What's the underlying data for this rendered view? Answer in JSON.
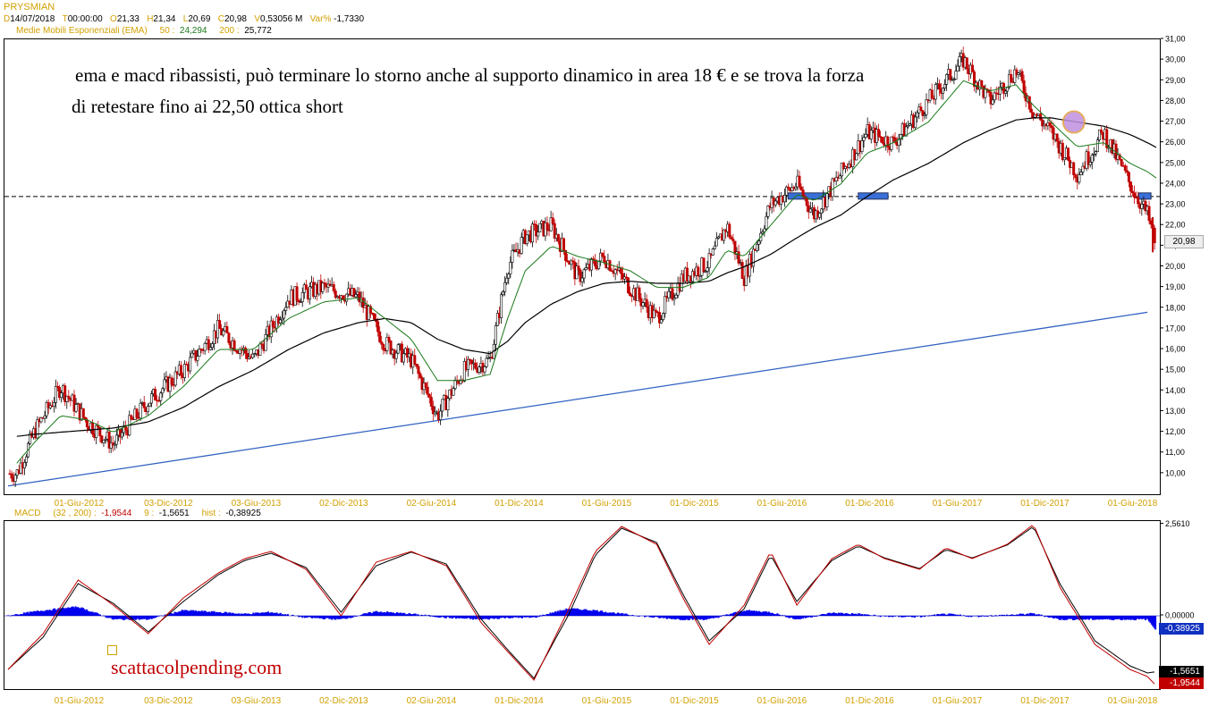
{
  "header": {
    "symbol": "PRYSMIAN",
    "d_label": "D",
    "date": "14/07/2018",
    "t_label": "T",
    "time": "00:00:00",
    "o_label": "O",
    "open": "21,33",
    "h_label": "H",
    "high": "21,34",
    "l_label": "L",
    "low": "20,69",
    "c_label": "C",
    "close": "20,98",
    "v_label": "V",
    "volume": "0,53056 M",
    "var_label": "Var%",
    "var_value": "-1,7330",
    "ema_label": "Medie Mobili Esponenziali (EMA)",
    "ema_fast_period": "50 :",
    "ema_fast_value": "24,294",
    "ema_slow_period": "200 :",
    "ema_slow_value": "25,772"
  },
  "annotation": {
    "line1": "ema e macd ribassisti, può terminare lo storno anche al supporto dinamico in area 18 € e se trova la forza",
    "line2": "di retestare fino ai 22,50 ottica short"
  },
  "macd_header": {
    "label": "MACD",
    "params": "(32 , 200) :",
    "macd_value": "-1,9544",
    "signal_label": "9 :",
    "signal_value": "-1,5651",
    "hist_label": "hist :",
    "hist_value": "-0,38925"
  },
  "watermark": "scattacolpending.com",
  "colors": {
    "accent_label": "#d2a000",
    "candle_down": "#c00000",
    "ema_fast": "#1a7a1a",
    "ema_slow": "#000000",
    "trendline": "#3060c0",
    "support_box": "#3a6fd8",
    "highlight_circle": "#c090e0",
    "macd_line": "#c00000",
    "histogram": "#0000ee"
  },
  "chart_data": [
    {
      "type": "line",
      "title": "PRYSMIAN",
      "xlabel": "",
      "ylabel": "",
      "ylim": [
        9,
        31
      ],
      "y_ticks": [
        "10,00",
        "11,00",
        "12,00",
        "13,00",
        "14,00",
        "15,00",
        "16,00",
        "17,00",
        "18,00",
        "19,00",
        "20,00",
        "21,00",
        "22,00",
        "23,00",
        "24,00",
        "25,00",
        "26,00",
        "27,00",
        "28,00",
        "29,00",
        "30,00",
        "31,00"
      ],
      "x_ticks": [
        "01-Giu-2012",
        "03-Dic-2012",
        "03-Giu-2013",
        "02-Dic-2013",
        "02-Giu-2014",
        "01-Dic-2014",
        "01-Giu-2015",
        "01-Dic-2015",
        "01-Giu-2016",
        "01-Dic-2016",
        "01-Giu-2017",
        "01-Dic-2017",
        "01-Giu-2018"
      ],
      "x": [
        2012.05,
        2012.15,
        2012.3,
        2012.45,
        2012.6,
        2012.8,
        2013.0,
        2013.2,
        2013.4,
        2013.6,
        2013.8,
        2014.0,
        2014.15,
        2014.3,
        2014.45,
        2014.6,
        2014.75,
        2014.85,
        2014.95,
        2015.1,
        2015.25,
        2015.4,
        2015.55,
        2015.7,
        2015.85,
        2016.0,
        2016.1,
        2016.2,
        2016.35,
        2016.5,
        2016.6,
        2016.75,
        2016.9,
        2017.05,
        2017.25,
        2017.45,
        2017.6,
        2017.75,
        2017.85,
        2017.95,
        2018.1,
        2018.25,
        2018.4,
        2018.5,
        2018.55
      ],
      "series": [
        {
          "values": [
            10.0,
            12.0,
            14.2,
            12.5,
            11.4,
            13.5,
            15.0,
            17.0,
            15.5,
            18.5,
            19.0,
            18.5,
            16.3,
            15.5,
            12.8,
            15.0,
            15.5,
            20.0,
            21.5,
            22.0,
            19.5,
            20.5,
            19.0,
            17.5,
            19.5,
            20.2,
            22.0,
            19.5,
            23.0,
            24.0,
            22.5,
            24.5,
            26.5,
            26.0,
            28.0,
            30.0,
            28.0,
            29.5,
            27.5,
            26.5,
            24.5,
            26.5,
            24.0,
            22.5,
            20.98
          ]
        },
        {
          "name": "EMA 50",
          "values": [
            10.5,
            11.5,
            12.8,
            12.6,
            12.0,
            12.8,
            14.2,
            16.0,
            16.0,
            17.5,
            18.3,
            18.5,
            17.5,
            16.5,
            14.5,
            14.5,
            14.8,
            17.5,
            19.8,
            21.0,
            20.5,
            20.2,
            19.8,
            19.0,
            19.0,
            19.5,
            20.8,
            20.5,
            22.0,
            23.5,
            23.2,
            24.0,
            25.5,
            26.0,
            27.0,
            29.0,
            28.5,
            28.8,
            27.8,
            27.0,
            25.8,
            26.0,
            25.0,
            24.6,
            24.294
          ]
        },
        {
          "name": "EMA 200",
          "values": [
            11.8,
            11.9,
            12.0,
            12.1,
            12.2,
            12.5,
            13.2,
            14.2,
            15.0,
            16.0,
            16.8,
            17.3,
            17.5,
            17.3,
            16.5,
            16.0,
            15.8,
            16.4,
            17.3,
            18.2,
            18.8,
            19.2,
            19.3,
            19.2,
            19.2,
            19.3,
            19.7,
            20.0,
            20.6,
            21.4,
            21.9,
            22.5,
            23.4,
            24.2,
            25.0,
            26.0,
            26.6,
            27.1,
            27.2,
            27.2,
            27.0,
            26.8,
            26.4,
            26.0,
            25.772
          ]
        }
      ],
      "trendline": {
        "x": [
          2012.0,
          2018.5
        ],
        "y": [
          9.4,
          17.8
        ]
      },
      "support_level": 23.4,
      "last_price_label": "20,98"
    },
    {
      "type": "line",
      "title": "MACD",
      "ylim": [
        -2.0,
        2.6
      ],
      "y_ticks": [
        "2,5610",
        "0,00000"
      ],
      "x_ticks": [
        "01-Giu-2012",
        "03-Dic-2012",
        "03-Giu-2013",
        "02-Dic-2013",
        "02-Giu-2014",
        "01-Dic-2014",
        "01-Giu-2015",
        "01-Dic-2015",
        "01-Giu-2016",
        "01-Dic-2016",
        "01-Giu-2017",
        "01-Dic-2017",
        "01-Giu-2018"
      ],
      "x": [
        2012.0,
        2012.2,
        2012.4,
        2012.6,
        2012.8,
        2013.0,
        2013.2,
        2013.35,
        2013.5,
        2013.7,
        2013.9,
        2014.1,
        2014.3,
        2014.5,
        2014.7,
        2014.85,
        2015.0,
        2015.2,
        2015.35,
        2015.5,
        2015.7,
        2015.85,
        2016.0,
        2016.2,
        2016.35,
        2016.5,
        2016.7,
        2016.85,
        2017.0,
        2017.2,
        2017.35,
        2017.5,
        2017.7,
        2017.85,
        2018.0,
        2018.2,
        2018.4,
        2018.5,
        2018.55
      ],
      "series": [
        {
          "name": "MACD",
          "values": [
            -1.5,
            -0.5,
            1.0,
            0.3,
            -0.5,
            0.5,
            1.2,
            1.6,
            1.8,
            1.3,
            0.0,
            1.5,
            1.8,
            1.4,
            -0.2,
            -1.0,
            -1.8,
            0.2,
            1.8,
            2.5,
            2.0,
            0.5,
            -0.8,
            0.3,
            1.8,
            0.3,
            1.6,
            2.0,
            1.6,
            1.3,
            1.9,
            1.6,
            2.0,
            2.56,
            0.8,
            -0.8,
            -1.5,
            -1.7,
            -1.9544
          ]
        },
        {
          "name": "Signal",
          "values": [
            -1.5,
            -0.6,
            0.9,
            0.35,
            -0.45,
            0.4,
            1.15,
            1.55,
            1.75,
            1.35,
            0.1,
            1.4,
            1.78,
            1.45,
            -0.1,
            -0.95,
            -1.75,
            0.05,
            1.7,
            2.45,
            2.05,
            0.6,
            -0.7,
            0.2,
            1.7,
            0.4,
            1.55,
            1.95,
            1.62,
            1.32,
            1.85,
            1.62,
            1.98,
            2.5,
            0.9,
            -0.7,
            -1.4,
            -1.6,
            -1.5651
          ]
        },
        {
          "name": "hist",
          "values": [
            0.0,
            0.15,
            0.25,
            -0.1,
            -0.1,
            0.15,
            0.1,
            0.05,
            0.1,
            -0.05,
            -0.1,
            0.12,
            0.05,
            -0.05,
            -0.1,
            -0.05,
            -0.05,
            0.2,
            0.15,
            0.05,
            -0.05,
            -0.1,
            -0.1,
            0.15,
            0.1,
            -0.1,
            0.08,
            0.05,
            -0.02,
            -0.03,
            0.05,
            -0.02,
            0.02,
            0.06,
            -0.1,
            -0.1,
            -0.1,
            -0.1,
            -0.38925
          ]
        }
      ]
    }
  ]
}
